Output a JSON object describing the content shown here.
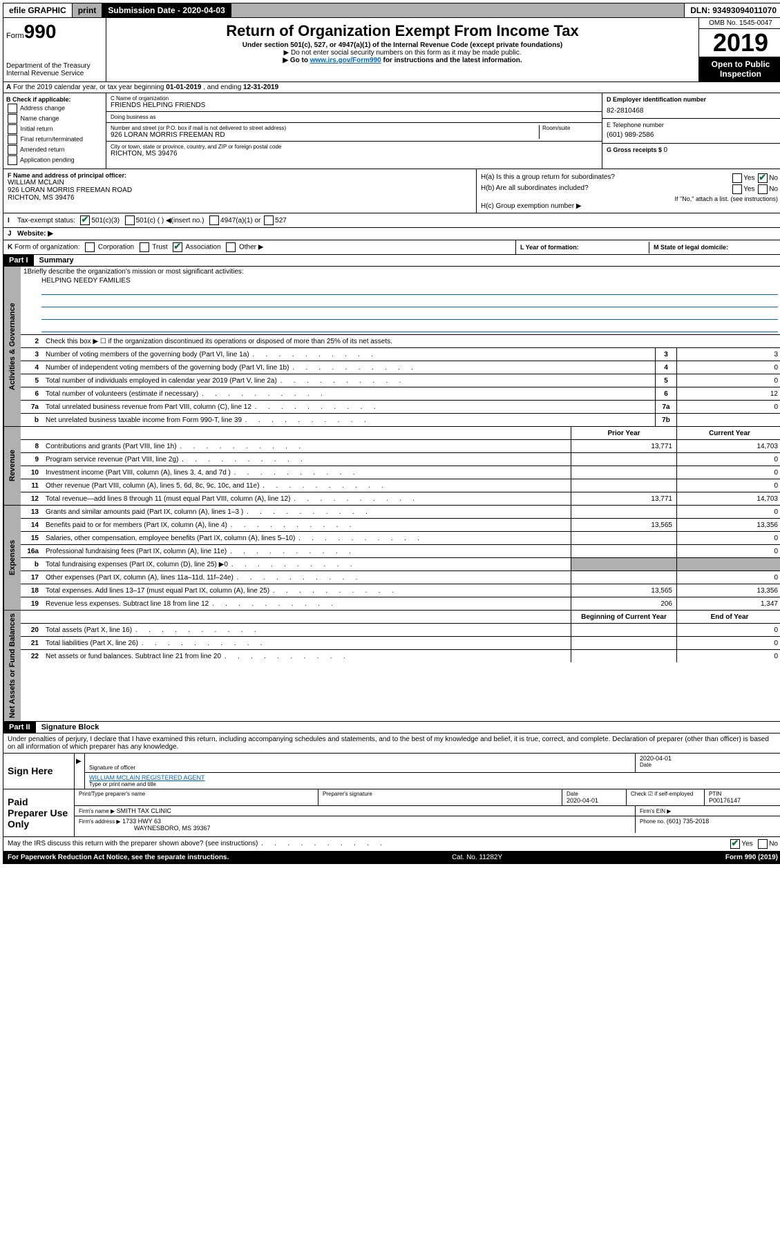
{
  "topbar": {
    "efile": "efile GRAPHIC",
    "print": "print",
    "subdate_label": "Submission Date - ",
    "subdate": "2020-04-03",
    "dln_label": "DLN: ",
    "dln": "93493094011070"
  },
  "header": {
    "form_prefix": "Form",
    "form_num": "990",
    "dept": "Department of the Treasury",
    "irs": "Internal Revenue Service",
    "title": "Return of Organization Exempt From Income Tax",
    "subtitle": "Under section 501(c), 527, or 4947(a)(1) of the Internal Revenue Code (except private foundations)",
    "instr1": "▶ Do not enter social security numbers on this form as it may be made public.",
    "instr2_a": "▶ Go to ",
    "instr2_link": "www.irs.gov/Form990",
    "instr2_b": " for instructions and the latest information.",
    "omb": "OMB No. 1545-0047",
    "year": "2019",
    "open": "Open to Public Inspection"
  },
  "row_a": {
    "text_a": "For the 2019 calendar year, or tax year beginning ",
    "begin": "01-01-2019",
    "text_b": " , and ending ",
    "end": "12-31-2019"
  },
  "col_b": {
    "hdr": "B Check if applicable:",
    "opts": [
      "Address change",
      "Name change",
      "Initial return",
      "Final return/terminated",
      "Amended return",
      "Application pending"
    ]
  },
  "col_c": {
    "name_lbl": "C Name of organization",
    "name": "FRIENDS HELPING FRIENDS",
    "dba_lbl": "Doing business as",
    "dba": "",
    "addr_lbl": "Number and street (or P.O. box if mail is not delivered to street address)",
    "room_lbl": "Room/suite",
    "addr": "926 LORAN MORRIS FREEMAN RD",
    "city_lbl": "City or town, state or province, country, and ZIP or foreign postal code",
    "city": "RICHTON, MS  39476"
  },
  "col_de": {
    "d_lbl": "D Employer identification number",
    "d_val": "82-2810468",
    "e_lbl": "E Telephone number",
    "e_val": "(601) 989-2586",
    "g_lbl": "G Gross receipts $ ",
    "g_val": "0"
  },
  "col_f": {
    "lbl": "F  Name and address of principal officer:",
    "name": "WILLIAM MCLAIN",
    "addr1": "926 LORAN MORRIS FREEMAN ROAD",
    "addr2": "RICHTON, MS  39476"
  },
  "col_h": {
    "a_lbl": "H(a)  Is this a group return for subordinates?",
    "b_lbl": "H(b)  Are all subordinates included?",
    "note": "If \"No,\" attach a list. (see instructions)",
    "c_lbl": "H(c)  Group exemption number ▶",
    "yes": "Yes",
    "no": "No"
  },
  "row_i": {
    "lbl": "I",
    "txt": "Tax-exempt status:",
    "opts": [
      "501(c)(3)",
      "501(c) (   ) ◀(insert no.)",
      "4947(a)(1) or",
      "527"
    ]
  },
  "row_j": {
    "lbl": "J",
    "txt": "Website: ▶"
  },
  "row_k": {
    "lbl": "K",
    "txt": "Form of organization:",
    "opts": [
      "Corporation",
      "Trust",
      "Association",
      "Other ▶"
    ],
    "l_lbl": "L Year of formation:",
    "m_lbl": "M State of legal domicile:"
  },
  "part1": {
    "hdr": "Part I",
    "title": "Summary"
  },
  "sections": {
    "gov": {
      "label": "Activities & Governance",
      "l1_num": "1",
      "l1_txt": "Briefly describe the organization's mission or most significant activities:",
      "l1_val": "HELPING NEEDY FAMILIES",
      "l2_num": "2",
      "l2_txt": "Check this box ▶ ☐  if the organization discontinued its operations or disposed of more than 25% of its net assets.",
      "rows": [
        {
          "n": "3",
          "t": "Number of voting members of the governing body (Part VI, line 1a)",
          "box": "3",
          "v": "3"
        },
        {
          "n": "4",
          "t": "Number of independent voting members of the governing body (Part VI, line 1b)",
          "box": "4",
          "v": "0"
        },
        {
          "n": "5",
          "t": "Total number of individuals employed in calendar year 2019 (Part V, line 2a)",
          "box": "5",
          "v": "0"
        },
        {
          "n": "6",
          "t": "Total number of volunteers (estimate if necessary)",
          "box": "6",
          "v": "12"
        },
        {
          "n": "7a",
          "t": "Total unrelated business revenue from Part VIII, column (C), line 12",
          "box": "7a",
          "v": "0"
        },
        {
          "n": "b",
          "t": "Net unrelated business taxable income from Form 990-T, line 39",
          "box": "7b",
          "v": ""
        }
      ]
    },
    "rev": {
      "label": "Revenue",
      "hdr_prior": "Prior Year",
      "hdr_curr": "Current Year",
      "rows": [
        {
          "n": "8",
          "t": "Contributions and grants (Part VIII, line 1h)",
          "p": "13,771",
          "c": "14,703"
        },
        {
          "n": "9",
          "t": "Program service revenue (Part VIII, line 2g)",
          "p": "",
          "c": "0"
        },
        {
          "n": "10",
          "t": "Investment income (Part VIII, column (A), lines 3, 4, and 7d )",
          "p": "",
          "c": "0"
        },
        {
          "n": "11",
          "t": "Other revenue (Part VIII, column (A), lines 5, 6d, 8c, 9c, 10c, and 11e)",
          "p": "",
          "c": "0"
        },
        {
          "n": "12",
          "t": "Total revenue—add lines 8 through 11 (must equal Part VIII, column (A), line 12)",
          "p": "13,771",
          "c": "14,703"
        }
      ]
    },
    "exp": {
      "label": "Expenses",
      "rows": [
        {
          "n": "13",
          "t": "Grants and similar amounts paid (Part IX, column (A), lines 1–3 )",
          "p": "",
          "c": "0"
        },
        {
          "n": "14",
          "t": "Benefits paid to or for members (Part IX, column (A), line 4)",
          "p": "13,565",
          "c": "13,356"
        },
        {
          "n": "15",
          "t": "Salaries, other compensation, employee benefits (Part IX, column (A), lines 5–10)",
          "p": "",
          "c": "0"
        },
        {
          "n": "16a",
          "t": "Professional fundraising fees (Part IX, column (A), line 11e)",
          "p": "",
          "c": "0"
        },
        {
          "n": "b",
          "t": "Total fundraising expenses (Part IX, column (D), line 25) ▶0",
          "p": "shade",
          "c": "shade"
        },
        {
          "n": "17",
          "t": "Other expenses (Part IX, column (A), lines 11a–11d, 11f–24e)",
          "p": "",
          "c": "0"
        },
        {
          "n": "18",
          "t": "Total expenses. Add lines 13–17 (must equal Part IX, column (A), line 25)",
          "p": "13,565",
          "c": "13,356"
        },
        {
          "n": "19",
          "t": "Revenue less expenses. Subtract line 18 from line 12",
          "p": "206",
          "c": "1,347"
        }
      ]
    },
    "net": {
      "label": "Net Assets or Fund Balances",
      "hdr_begin": "Beginning of Current Year",
      "hdr_end": "End of Year",
      "rows": [
        {
          "n": "20",
          "t": "Total assets (Part X, line 16)",
          "p": "",
          "c": "0"
        },
        {
          "n": "21",
          "t": "Total liabilities (Part X, line 26)",
          "p": "",
          "c": "0"
        },
        {
          "n": "22",
          "t": "Net assets or fund balances. Subtract line 21 from line 20",
          "p": "",
          "c": "0"
        }
      ]
    }
  },
  "part2": {
    "hdr": "Part II",
    "title": "Signature Block",
    "decl": "Under penalties of perjury, I declare that I have examined this return, including accompanying schedules and statements, and to the best of my knowledge and belief, it is true, correct, and complete. Declaration of preparer (other than officer) is based on all information of which preparer has any knowledge."
  },
  "sign": {
    "lbl": "Sign Here",
    "sig_lbl": "Signature of officer",
    "date": "2020-04-01",
    "date_lbl": "Date",
    "name": "WILLIAM MCLAIN  REGISTERED AGENT",
    "name_lbl": "Type or print name and title"
  },
  "paid": {
    "lbl": "Paid Preparer Use Only",
    "r1": {
      "c1_lbl": "Print/Type preparer's name",
      "c2_lbl": "Preparer's signature",
      "c3_lbl": "Date",
      "c3_val": "2020-04-01",
      "c4_lbl": "Check ☑ if self-employed",
      "c5_lbl": "PTIN",
      "c5_val": "P00176147"
    },
    "r2": {
      "c1_lbl": "Firm's name    ▶",
      "c1_val": "SMITH TAX CLINIC",
      "c2_lbl": "Firm's EIN ▶"
    },
    "r3": {
      "c1_lbl": "Firm's address ▶",
      "c1_val": "1733 HWY 63",
      "c1_val2": "WAYNESBORO, MS  39367",
      "c2_lbl": "Phone no. ",
      "c2_val": "(601) 735-2018"
    }
  },
  "footer": {
    "discuss": "May the IRS discuss this return with the preparer shown above? (see instructions)",
    "yes": "Yes",
    "no": "No",
    "notice": "For Paperwork Reduction Act Notice, see the separate instructions.",
    "cat": "Cat. No. 11282Y",
    "form": "Form 990 (2019)"
  }
}
